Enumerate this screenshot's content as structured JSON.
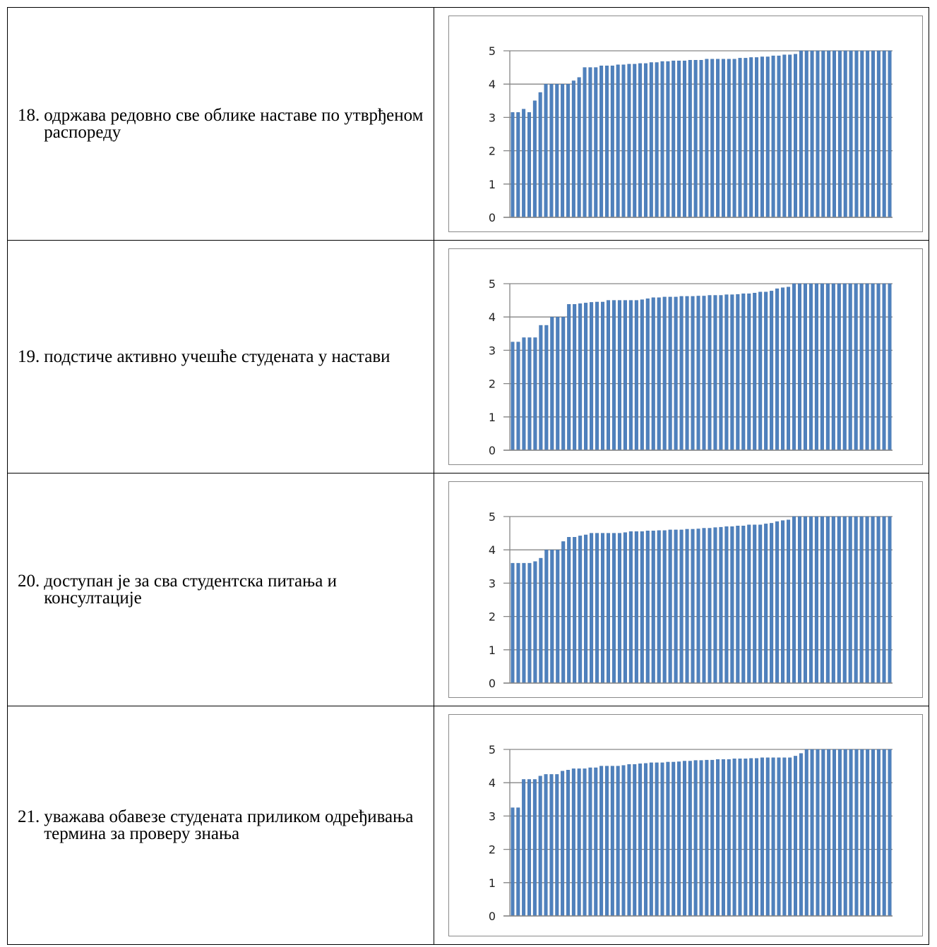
{
  "rows": [
    {
      "number": "18.",
      "text": "одржава редовно све облике наставе по утврђеном распореду"
    },
    {
      "number": "19.",
      "text": "подстиче активно учешће студената у настави"
    },
    {
      "number": "20.",
      "text": "доступан је за сва студентска питања и консултације"
    },
    {
      "number": "21.",
      "text": "уважава обавезе студената приликом одређивања термина за проверу знања"
    }
  ],
  "colors": {
    "bar": "#4f81bd",
    "bar_edge": "#3a6aa6",
    "gridline": "#868686",
    "frame": "#8a8a8a",
    "text": "#000000"
  },
  "chart_data": [
    {
      "type": "bar",
      "title": "",
      "xlabel": "",
      "ylabel": "",
      "ylim": [
        0,
        5
      ],
      "yticks": [
        "0",
        "1",
        "2",
        "3",
        "4",
        "5"
      ],
      "grid": true,
      "legend": "none",
      "values": [
        3.15,
        3.15,
        3.25,
        3.15,
        3.5,
        3.75,
        4,
        4,
        4,
        4,
        4,
        4.1,
        4.2,
        4.5,
        4.5,
        4.5,
        4.55,
        4.55,
        4.55,
        4.58,
        4.58,
        4.6,
        4.6,
        4.62,
        4.62,
        4.65,
        4.65,
        4.68,
        4.68,
        4.7,
        4.7,
        4.7,
        4.72,
        4.72,
        4.72,
        4.75,
        4.75,
        4.75,
        4.75,
        4.75,
        4.75,
        4.78,
        4.78,
        4.8,
        4.8,
        4.82,
        4.82,
        4.85,
        4.85,
        4.88,
        4.88,
        4.9,
        5,
        5,
        5,
        5,
        5,
        5,
        5,
        5,
        5,
        5,
        5,
        5,
        5,
        5,
        5,
        5,
        5
      ]
    },
    {
      "type": "bar",
      "title": "",
      "xlabel": "",
      "ylabel": "",
      "ylim": [
        0,
        5
      ],
      "yticks": [
        "0",
        "1",
        "2",
        "3",
        "4",
        "5"
      ],
      "grid": true,
      "legend": "none",
      "values": [
        3.25,
        3.25,
        3.38,
        3.38,
        3.38,
        3.75,
        3.75,
        4,
        4,
        4,
        4.38,
        4.38,
        4.4,
        4.42,
        4.44,
        4.45,
        4.45,
        4.5,
        4.5,
        4.5,
        4.5,
        4.5,
        4.5,
        4.52,
        4.55,
        4.58,
        4.58,
        4.6,
        4.6,
        4.6,
        4.62,
        4.62,
        4.62,
        4.63,
        4.63,
        4.65,
        4.65,
        4.65,
        4.67,
        4.67,
        4.68,
        4.7,
        4.7,
        4.72,
        4.75,
        4.75,
        4.78,
        4.85,
        4.88,
        4.9,
        5,
        5,
        5,
        5,
        5,
        5,
        5,
        5,
        5,
        5,
        5,
        5,
        5,
        5,
        5,
        5,
        5,
        5
      ]
    },
    {
      "type": "bar",
      "title": "",
      "xlabel": "",
      "ylabel": "",
      "ylim": [
        0,
        5
      ],
      "yticks": [
        "0",
        "1",
        "2",
        "3",
        "4",
        "5"
      ],
      "grid": true,
      "legend": "none",
      "values": [
        3.6,
        3.6,
        3.6,
        3.6,
        3.65,
        3.75,
        4,
        4,
        4,
        4.25,
        4.38,
        4.38,
        4.42,
        4.45,
        4.5,
        4.5,
        4.5,
        4.5,
        4.5,
        4.5,
        4.52,
        4.55,
        4.55,
        4.55,
        4.57,
        4.57,
        4.58,
        4.58,
        4.6,
        4.6,
        4.6,
        4.62,
        4.62,
        4.63,
        4.65,
        4.65,
        4.67,
        4.68,
        4.7,
        4.7,
        4.72,
        4.72,
        4.75,
        4.75,
        4.75,
        4.78,
        4.8,
        4.85,
        4.88,
        4.9,
        5,
        5,
        5,
        5,
        5,
        5,
        5,
        5,
        5,
        5,
        5,
        5,
        5,
        5,
        5,
        5,
        5,
        5
      ]
    },
    {
      "type": "bar",
      "title": "",
      "xlabel": "",
      "ylabel": "",
      "ylim": [
        0,
        5
      ],
      "yticks": [
        "0",
        "1",
        "2",
        "3",
        "4",
        "5"
      ],
      "grid": true,
      "legend": "none",
      "values": [
        3.25,
        3.25,
        4.1,
        4.1,
        4.1,
        4.2,
        4.25,
        4.25,
        4.25,
        4.35,
        4.38,
        4.42,
        4.42,
        4.42,
        4.45,
        4.45,
        4.5,
        4.5,
        4.5,
        4.5,
        4.52,
        4.55,
        4.55,
        4.57,
        4.58,
        4.6,
        4.6,
        4.6,
        4.62,
        4.62,
        4.63,
        4.65,
        4.65,
        4.67,
        4.67,
        4.68,
        4.68,
        4.7,
        4.7,
        4.7,
        4.72,
        4.72,
        4.72,
        4.73,
        4.73,
        4.75,
        4.75,
        4.75,
        4.75,
        4.75,
        4.75,
        4.8,
        4.88,
        5,
        5,
        5,
        5,
        5,
        5,
        5,
        5,
        5,
        5,
        5,
        5,
        5,
        5,
        5,
        5
      ]
    }
  ]
}
